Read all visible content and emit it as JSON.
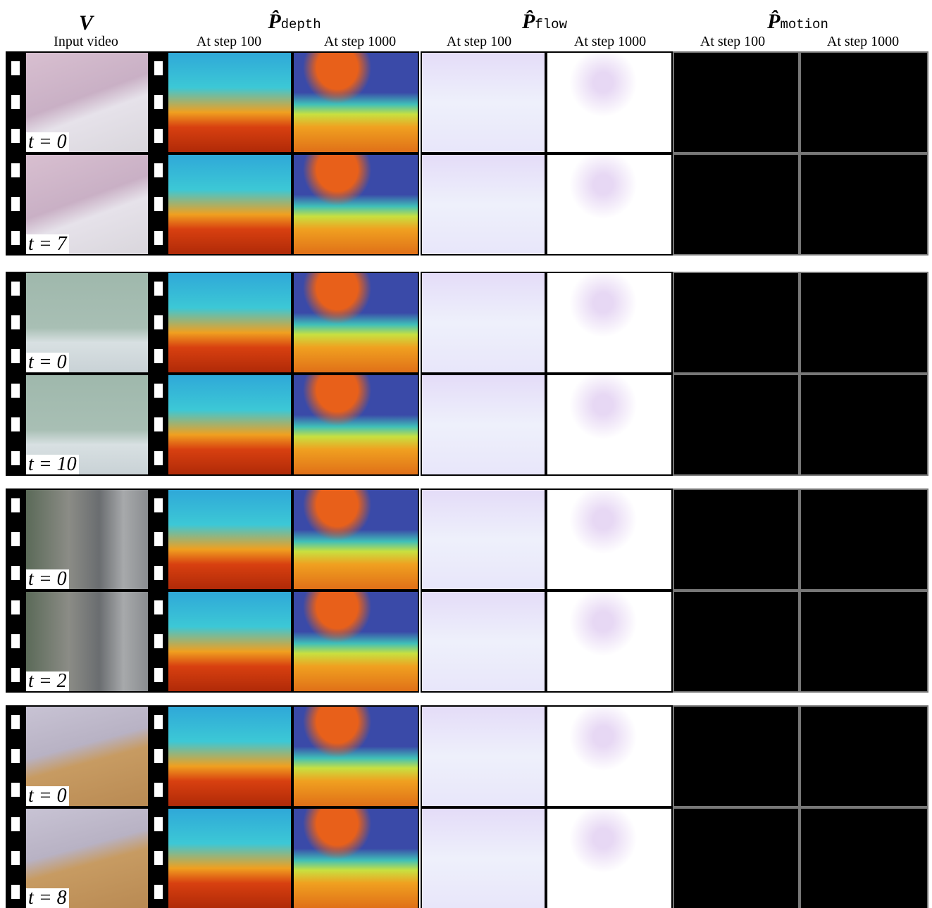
{
  "header": {
    "input": {
      "symbol": "V",
      "label": "Input video"
    },
    "groups": [
      {
        "symbol": "P̂",
        "subscript": "depth",
        "steps": [
          "At step 100",
          "At step 1000"
        ]
      },
      {
        "symbol": "P̂",
        "subscript": "flow",
        "steps": [
          "At step 100",
          "At step 1000"
        ]
      },
      {
        "symbol": "P̂",
        "subscript": "motion",
        "steps": [
          "At step 100",
          "At step 1000"
        ]
      }
    ]
  },
  "examples": [
    {
      "frames": [
        "t = 0",
        "t = 7"
      ]
    },
    {
      "frames": [
        "t = 0",
        "t = 10"
      ]
    },
    {
      "frames": [
        "t = 0",
        "t = 2"
      ]
    },
    {
      "frames": [
        "t = 0",
        "t = 8"
      ]
    }
  ]
}
